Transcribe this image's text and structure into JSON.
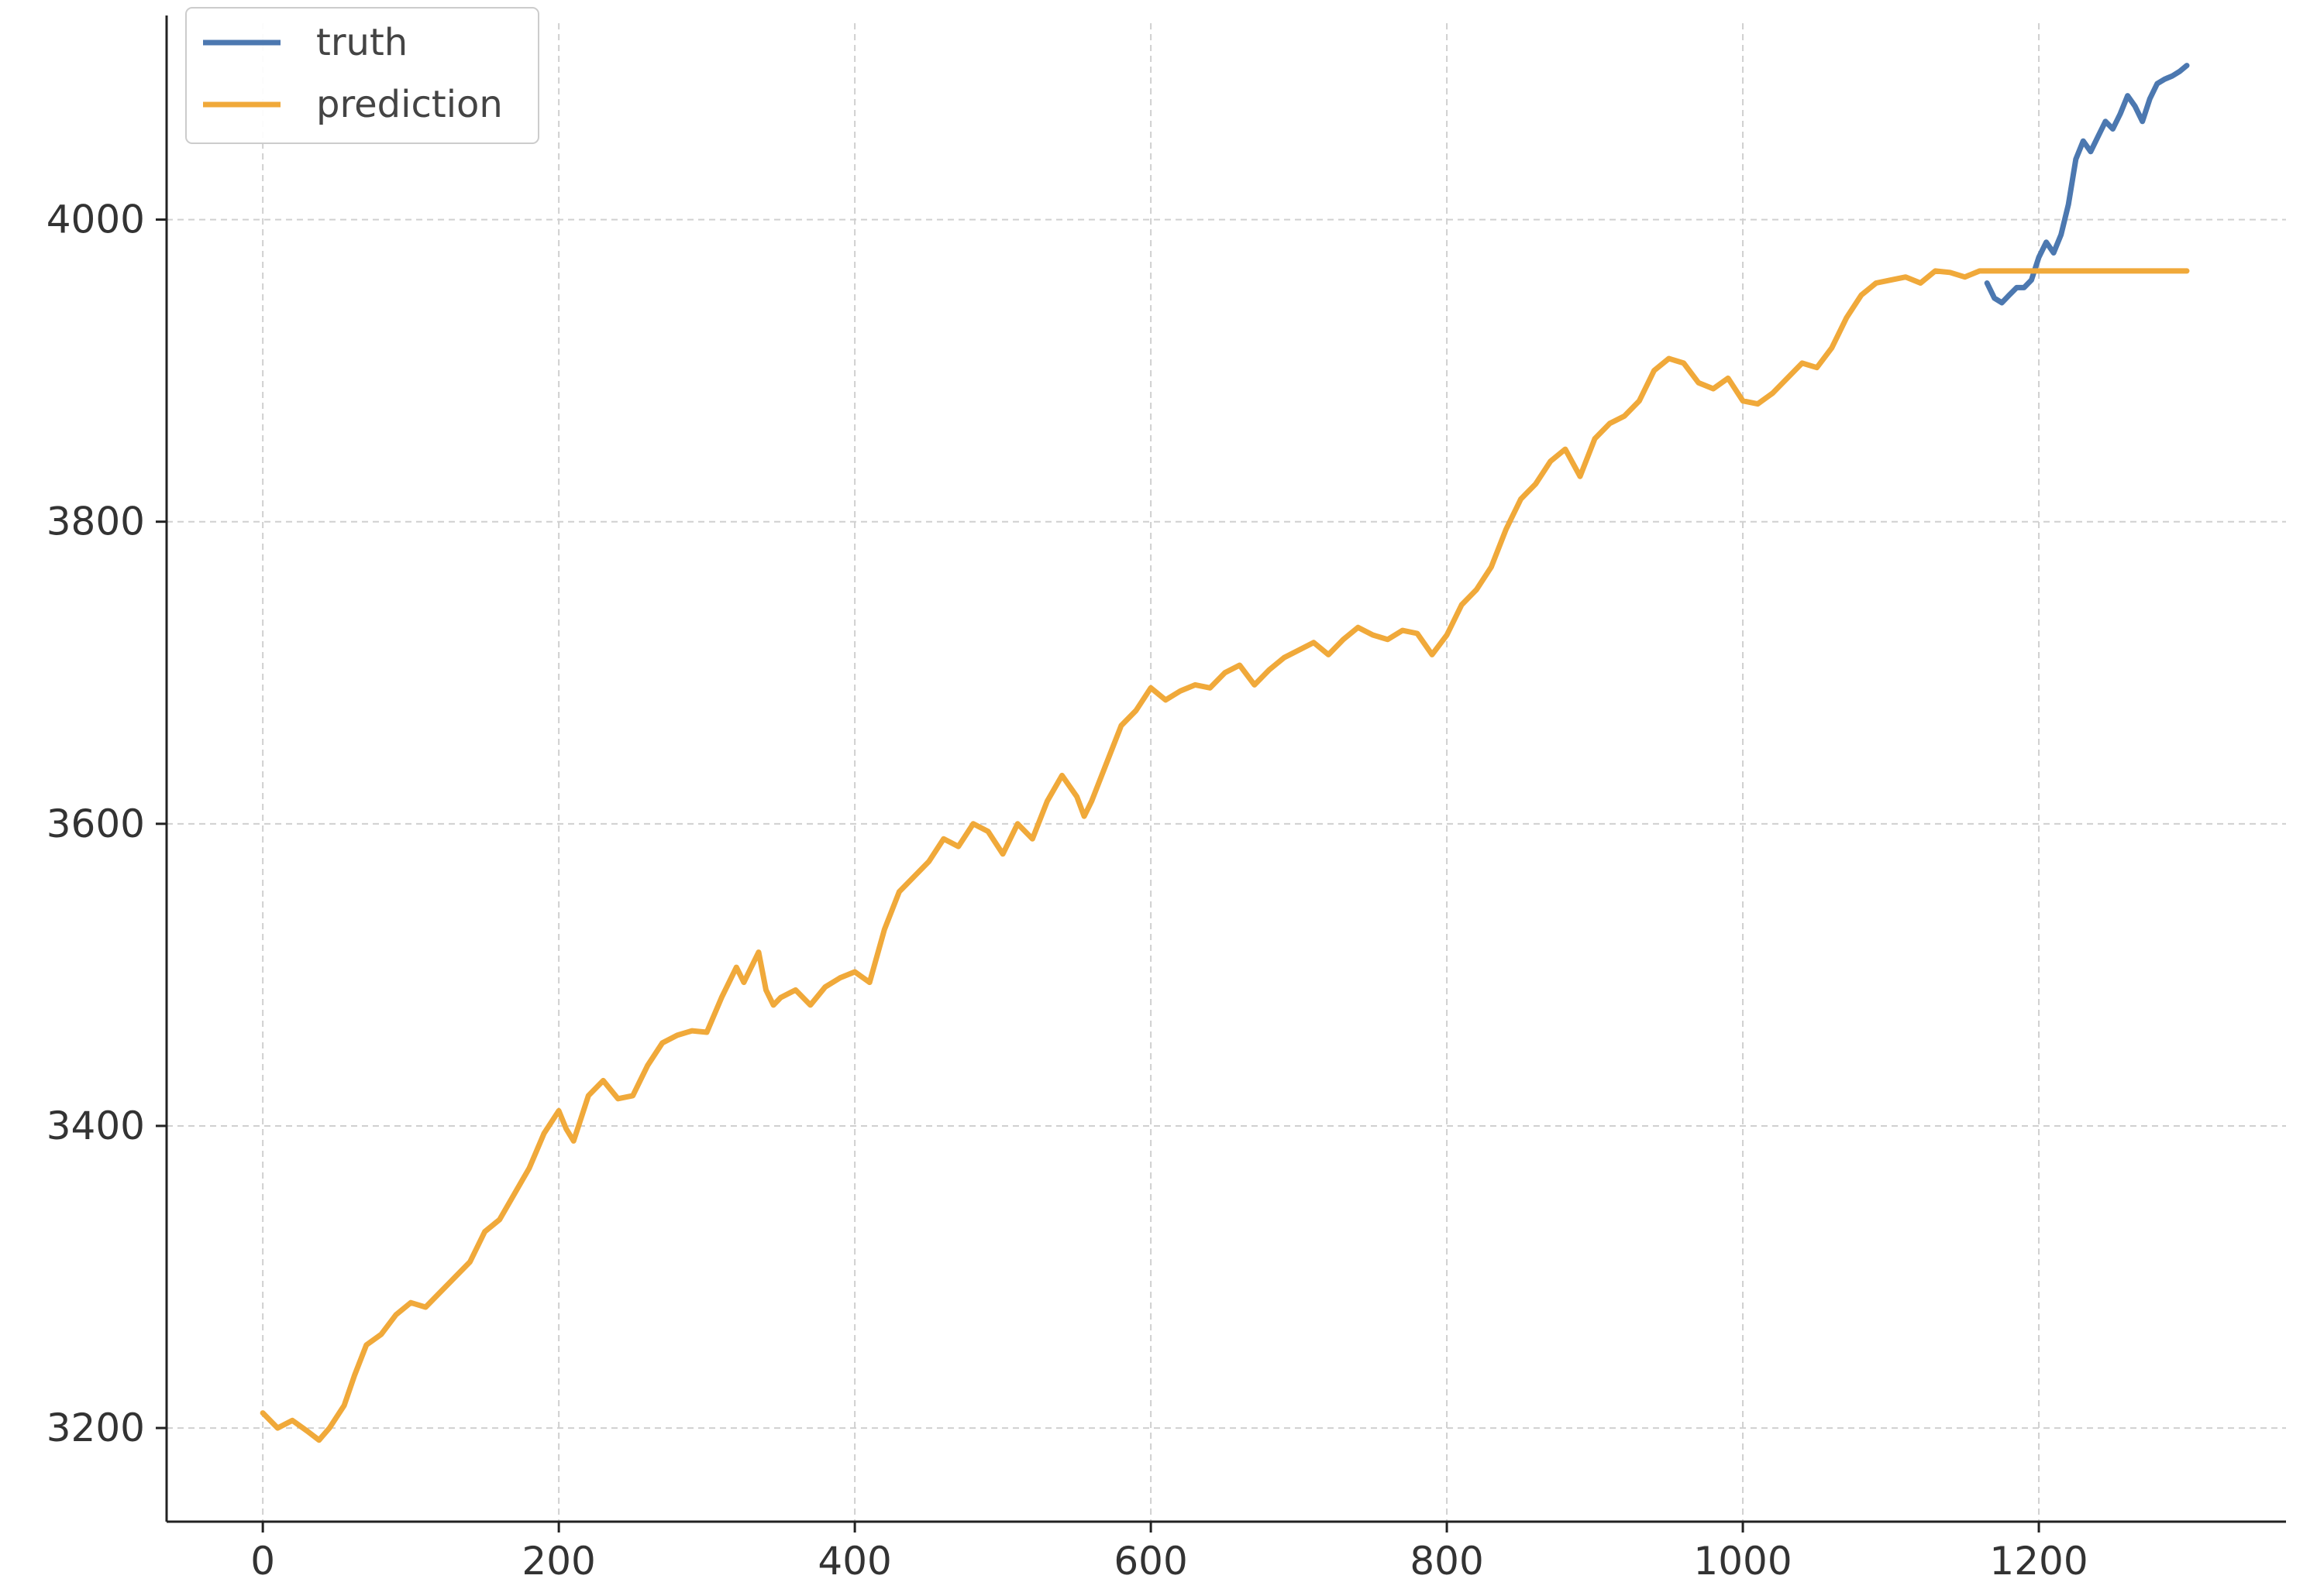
{
  "chart_data": {
    "type": "line",
    "title": "",
    "xlabel": "",
    "ylabel": "",
    "xlim": [
      -65,
      1367
    ],
    "ylim": [
      3138,
      4130
    ],
    "x_ticks": [
      0,
      200,
      400,
      600,
      800,
      1000,
      1200
    ],
    "y_ticks": [
      3200,
      3400,
      3600,
      3800,
      4000
    ],
    "grid": true,
    "legend_position": "top-left",
    "series": [
      {
        "name": "truth",
        "color": "#4c78b0",
        "x": [
          1165,
          1170,
          1175,
          1180,
          1185,
          1190,
          1195,
          1200,
          1205,
          1210,
          1215,
          1220,
          1225,
          1230,
          1235,
          1240,
          1245,
          1250,
          1255,
          1260,
          1265,
          1270,
          1275,
          1280,
          1285,
          1290,
          1295,
          1300
        ],
        "y": [
          3958,
          3948,
          3945,
          3950,
          3955,
          3955,
          3960,
          3975,
          3985,
          3978,
          3990,
          4010,
          4040,
          4052,
          4045,
          4055,
          4065,
          4060,
          4070,
          4082,
          4075,
          4065,
          4080,
          4090,
          4093,
          4095,
          4098,
          4102
        ]
      },
      {
        "name": "prediction",
        "color": "#f0a93a",
        "x": [
          0,
          10,
          20,
          30,
          38,
          45,
          55,
          62,
          70,
          80,
          90,
          100,
          110,
          120,
          130,
          140,
          150,
          160,
          170,
          180,
          190,
          200,
          205,
          210,
          215,
          220,
          230,
          240,
          250,
          260,
          270,
          280,
          290,
          300,
          310,
          320,
          325,
          330,
          335,
          340,
          345,
          350,
          360,
          370,
          380,
          390,
          400,
          410,
          420,
          430,
          440,
          450,
          460,
          470,
          480,
          490,
          500,
          510,
          520,
          530,
          540,
          550,
          555,
          560,
          570,
          580,
          590,
          600,
          610,
          620,
          630,
          640,
          650,
          660,
          670,
          680,
          690,
          700,
          710,
          720,
          730,
          740,
          750,
          760,
          770,
          780,
          790,
          800,
          810,
          820,
          830,
          840,
          850,
          860,
          870,
          880,
          890,
          900,
          910,
          920,
          930,
          940,
          950,
          960,
          970,
          980,
          990,
          1000,
          1010,
          1020,
          1030,
          1040,
          1050,
          1060,
          1070,
          1080,
          1090,
          1100,
          1110,
          1120,
          1130,
          1140,
          1150,
          1160,
          1170,
          1180,
          1190,
          1200,
          1210,
          1220,
          1230,
          1240,
          1250,
          1260,
          1270,
          1280,
          1290,
          1300
        ],
        "y": [
          3210,
          3200,
          3205,
          3198,
          3192,
          3200,
          3215,
          3235,
          3255,
          3262,
          3275,
          3283,
          3280,
          3290,
          3300,
          3310,
          3330,
          3338,
          3355,
          3372,
          3395,
          3410,
          3398,
          3390,
          3405,
          3420,
          3430,
          3418,
          3420,
          3440,
          3455,
          3460,
          3463,
          3462,
          3485,
          3505,
          3495,
          3505,
          3515,
          3490,
          3480,
          3485,
          3490,
          3480,
          3492,
          3498,
          3502,
          3495,
          3530,
          3555,
          3565,
          3575,
          3590,
          3585,
          3600,
          3595,
          3580,
          3600,
          3590,
          3615,
          3632,
          3618,
          3605,
          3615,
          3640,
          3665,
          3675,
          3690,
          3682,
          3688,
          3692,
          3690,
          3700,
          3705,
          3692,
          3702,
          3710,
          3715,
          3720,
          3712,
          3722,
          3730,
          3725,
          3722,
          3728,
          3726,
          3712,
          3725,
          3745,
          3755,
          3770,
          3795,
          3815,
          3825,
          3840,
          3848,
          3830,
          3855,
          3865,
          3870,
          3880,
          3900,
          3908,
          3905,
          3892,
          3888,
          3895,
          3880,
          3878,
          3885,
          3895,
          3905,
          3902,
          3915,
          3935,
          3950,
          3958,
          3960,
          3962,
          3958,
          3966,
          3965,
          3962,
          3966,
          3966,
          3966,
          3966,
          3966,
          3966,
          3966,
          3966,
          3966,
          3966,
          3966,
          3966,
          3966,
          3966,
          3966
        ]
      }
    ]
  }
}
